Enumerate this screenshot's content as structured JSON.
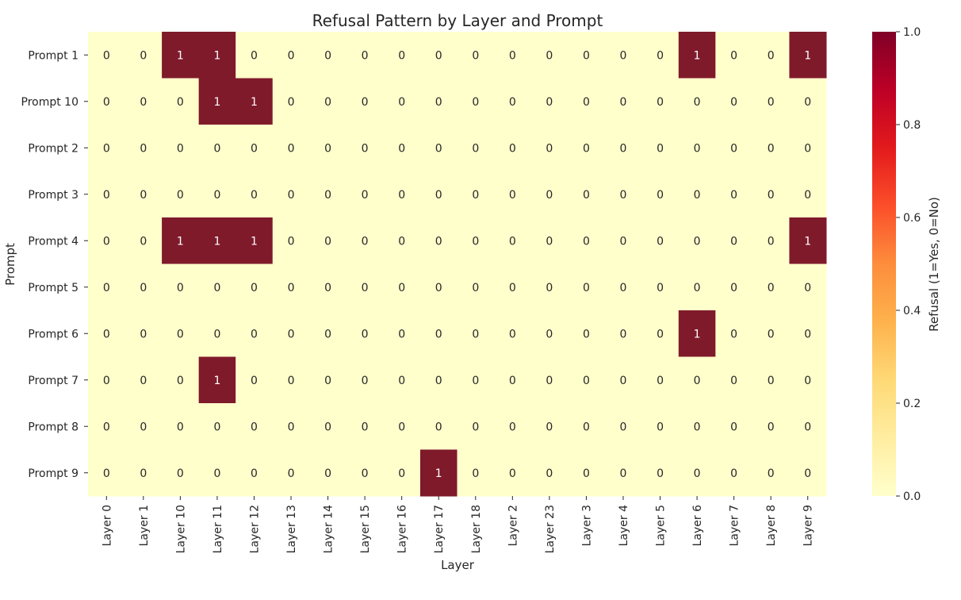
{
  "chart_data": {
    "type": "heatmap",
    "title": "Refusal Pattern by Layer and Prompt",
    "xlabel": "Layer",
    "ylabel": "Prompt",
    "x_categories": [
      "Layer 0",
      "Layer 1",
      "Layer 10",
      "Layer 11",
      "Layer 12",
      "Layer 13",
      "Layer 14",
      "Layer 15",
      "Layer 16",
      "Layer 17",
      "Layer 18",
      "Layer 2",
      "Layer 23",
      "Layer 3",
      "Layer 4",
      "Layer 5",
      "Layer 6",
      "Layer 7",
      "Layer 8",
      "Layer 9"
    ],
    "y_categories": [
      "Prompt 1",
      "Prompt 10",
      "Prompt 2",
      "Prompt 3",
      "Prompt 4",
      "Prompt 5",
      "Prompt 6",
      "Prompt 7",
      "Prompt 8",
      "Prompt 9"
    ],
    "values": [
      [
        0,
        0,
        1,
        1,
        0,
        0,
        0,
        0,
        0,
        0,
        0,
        0,
        0,
        0,
        0,
        0,
        1,
        0,
        0,
        1
      ],
      [
        0,
        0,
        0,
        1,
        1,
        0,
        0,
        0,
        0,
        0,
        0,
        0,
        0,
        0,
        0,
        0,
        0,
        0,
        0,
        0
      ],
      [
        0,
        0,
        0,
        0,
        0,
        0,
        0,
        0,
        0,
        0,
        0,
        0,
        0,
        0,
        0,
        0,
        0,
        0,
        0,
        0
      ],
      [
        0,
        0,
        0,
        0,
        0,
        0,
        0,
        0,
        0,
        0,
        0,
        0,
        0,
        0,
        0,
        0,
        0,
        0,
        0,
        0
      ],
      [
        0,
        0,
        1,
        1,
        1,
        0,
        0,
        0,
        0,
        0,
        0,
        0,
        0,
        0,
        0,
        0,
        0,
        0,
        0,
        1
      ],
      [
        0,
        0,
        0,
        0,
        0,
        0,
        0,
        0,
        0,
        0,
        0,
        0,
        0,
        0,
        0,
        0,
        0,
        0,
        0,
        0
      ],
      [
        0,
        0,
        0,
        0,
        0,
        0,
        0,
        0,
        0,
        0,
        0,
        0,
        0,
        0,
        0,
        0,
        1,
        0,
        0,
        0
      ],
      [
        0,
        0,
        0,
        1,
        0,
        0,
        0,
        0,
        0,
        0,
        0,
        0,
        0,
        0,
        0,
        0,
        0,
        0,
        0,
        0
      ],
      [
        0,
        0,
        0,
        0,
        0,
        0,
        0,
        0,
        0,
        0,
        0,
        0,
        0,
        0,
        0,
        0,
        0,
        0,
        0,
        0
      ],
      [
        0,
        0,
        0,
        0,
        0,
        0,
        0,
        0,
        0,
        1,
        0,
        0,
        0,
        0,
        0,
        0,
        0,
        0,
        0,
        0
      ]
    ],
    "colorbar": {
      "label": "Refusal (1=Yes, 0=No)",
      "range": [
        0.0,
        1.0
      ],
      "ticks": [
        "0.0",
        "0.2",
        "0.4",
        "0.6",
        "0.8",
        "1.0"
      ],
      "colormap": [
        "#ffffcc",
        "#ffeda0",
        "#fed976",
        "#feb24c",
        "#fd8d3c",
        "#fc4e2a",
        "#e31a1c",
        "#bd0026",
        "#800026"
      ]
    },
    "colors": {
      "low": "#ffffcc",
      "high": "#7f1a2b",
      "text_on_high": "#ffffff",
      "text_on_low": "#262626"
    }
  }
}
